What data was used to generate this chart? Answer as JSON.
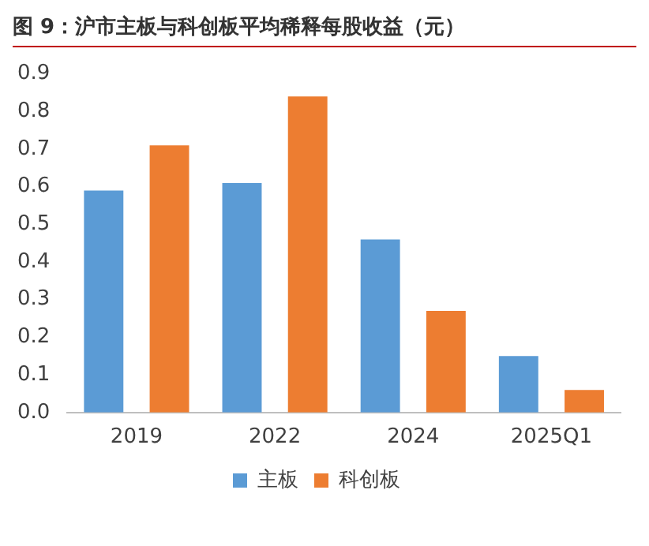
{
  "chart_data": {
    "type": "bar",
    "title": "图 9：沪市主板与科创板平均稀释每股收益（元）",
    "categories": [
      "2019",
      "2022",
      "2024",
      "2025Q1"
    ],
    "series": [
      {
        "name": "主板",
        "color": "#5b9bd5",
        "values": [
          0.59,
          0.61,
          0.46,
          0.15
        ]
      },
      {
        "name": "科创板",
        "color": "#ed7d31",
        "values": [
          0.71,
          0.84,
          0.27,
          0.06
        ]
      }
    ],
    "ylim": [
      0,
      0.9
    ],
    "yticks": [
      {
        "value": 0,
        "label": "0.0"
      },
      {
        "value": 0.1,
        "label": "0.1"
      },
      {
        "value": 0.2,
        "label": "0.2"
      },
      {
        "value": 0.3,
        "label": "0.3"
      },
      {
        "value": 0.4,
        "label": "0.4"
      },
      {
        "value": 0.5,
        "label": "0.5"
      },
      {
        "value": 0.6,
        "label": "0.6"
      },
      {
        "value": 0.7,
        "label": "0.7"
      },
      {
        "value": 0.8,
        "label": "0.8"
      },
      {
        "value": 0.9,
        "label": "0.9"
      }
    ],
    "grid": false,
    "legend": "bottom"
  }
}
